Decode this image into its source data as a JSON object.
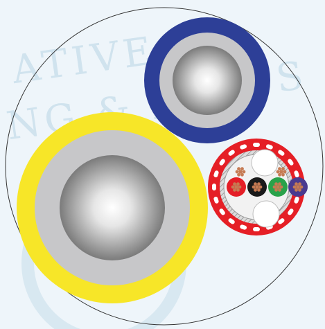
{
  "watermark": {
    "line1": "ATIVE D",
    "line2": "NG & D",
    "line3": "S",
    "color": "#b9d3e3"
  },
  "colors": {
    "background": "#eef5fa",
    "outer_outline": "#333333",
    "yellow_jacket": "#f7e628",
    "blue_jacket": "#2d3f97",
    "red_jacket": "#e51f26",
    "insulation_grey": "#c7c7c9",
    "conductor_dark": "#7d7d7d",
    "conductor_light": "#ffffff",
    "copper_strand": "#c67b53",
    "core_red": "#e41e26",
    "core_black": "#1a1a1a",
    "core_green": "#2aa24a",
    "core_purple": "#4a3a8f",
    "filler_white": "#ffffff",
    "shield_grey": "#9a9a9a"
  },
  "cable": {
    "components": [
      {
        "name": "large-power-core",
        "jacket": "yellow"
      },
      {
        "name": "medium-power-core",
        "jacket": "blue"
      },
      {
        "name": "signal-cable",
        "jacket": "red",
        "cores": [
          "red",
          "black",
          "green",
          "purple"
        ],
        "fillers": 2,
        "drains": 2
      }
    ]
  }
}
